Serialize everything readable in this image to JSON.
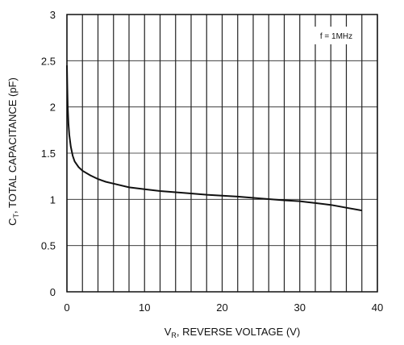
{
  "chart_data": {
    "type": "line",
    "title": "",
    "xlabel": {
      "main": "V",
      "sub": "R",
      "rest": ", REVERSE VOLTAGE (V)"
    },
    "ylabel": {
      "main": "C",
      "sub": "T",
      "rest": ", TOTAL CAPACITANCE (pF)"
    },
    "xlim": [
      0,
      40
    ],
    "ylim": [
      0,
      3
    ],
    "x_ticks": [
      0,
      10,
      20,
      30,
      40
    ],
    "x_tick_labels": [
      "0",
      "10",
      "20",
      "30",
      "40"
    ],
    "y_ticks": [
      0,
      0.5,
      1,
      1.5,
      2,
      2.5,
      3
    ],
    "y_tick_labels": [
      "0",
      "0.5",
      "1",
      "1.5",
      "2",
      "2.5",
      "3"
    ],
    "grid": true,
    "x_grid_step": 2,
    "y_grid_step": 0.5,
    "annotation": "f = 1MHz",
    "series": [
      {
        "x": [
          0,
          0.05,
          0.1,
          0.2,
          0.3,
          0.5,
          0.75,
          1,
          1.5,
          2,
          3,
          4,
          5,
          6,
          8,
          10,
          12,
          15,
          18,
          20,
          22,
          25,
          28,
          30,
          32,
          34,
          36,
          38
        ],
        "values": [
          2.45,
          2.2,
          2.0,
          1.82,
          1.7,
          1.57,
          1.47,
          1.41,
          1.35,
          1.31,
          1.26,
          1.22,
          1.19,
          1.17,
          1.13,
          1.11,
          1.09,
          1.07,
          1.05,
          1.04,
          1.03,
          1.01,
          0.99,
          0.98,
          0.96,
          0.94,
          0.91,
          0.88
        ]
      }
    ]
  },
  "colors": {
    "grid": "#222222",
    "curve": "#111111",
    "axis": "#111111"
  }
}
